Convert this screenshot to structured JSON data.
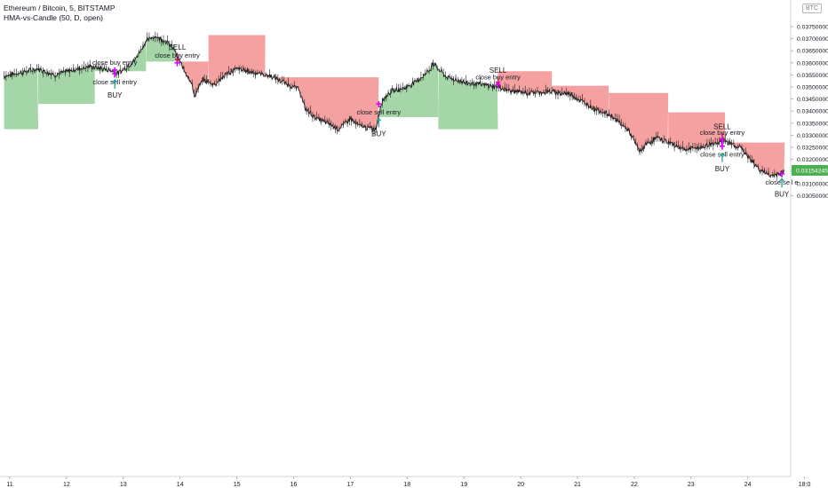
{
  "header": {
    "symbol": "Ethereum / Bitcoin, 5, BITSTAMP",
    "indicator": "HMA-vs-Candle (50, D, open)",
    "currency_badge": "BTC"
  },
  "colors": {
    "up_fill": "#a5d6a7",
    "down_fill": "#f6a1a1",
    "candle": "#1e1e1e",
    "marker": "#d500f9",
    "sell_arrow": "#c2185b",
    "buy_arrow": "#26a69a",
    "price_tag": "#4caf50",
    "axis_text": "#131722"
  },
  "chart_data": {
    "type": "line",
    "title": "Ethereum / Bitcoin, 5, BITSTAMP",
    "xlabel": "",
    "ylabel": "",
    "x_ticks": [
      "11",
      "12",
      "13",
      "14",
      "15",
      "16",
      "17",
      "18",
      "19",
      "20",
      "21",
      "22",
      "23",
      "24",
      "18:0"
    ],
    "y_ticks": [
      "0.03750000",
      "0.03700000",
      "0.03650000",
      "0.03600000",
      "0.03550000",
      "0.03500000",
      "0.03450000",
      "0.03400000",
      "0.03350000",
      "0.03300000",
      "0.03250000",
      "0.03200000",
      "0.03150000",
      "0.03100000",
      "0.03050000"
    ],
    "ylim": [
      0.03025,
      0.03775
    ],
    "last_price_label": "0.03154245",
    "last_price": 0.03154245,
    "price_series": [
      {
        "d": 10.9,
        "p": 0.03545
      },
      {
        "d": 11.2,
        "p": 0.0356
      },
      {
        "d": 11.5,
        "p": 0.03575
      },
      {
        "d": 11.8,
        "p": 0.0355
      },
      {
        "d": 12.1,
        "p": 0.0357
      },
      {
        "d": 12.4,
        "p": 0.03585
      },
      {
        "d": 12.8,
        "p": 0.03568
      },
      {
        "d": 12.9,
        "p": 0.03555
      },
      {
        "d": 13.2,
        "p": 0.0361
      },
      {
        "d": 13.4,
        "p": 0.0369
      },
      {
        "d": 13.55,
        "p": 0.0371
      },
      {
        "d": 13.75,
        "p": 0.0369
      },
      {
        "d": 13.9,
        "p": 0.03655
      },
      {
        "d": 14.0,
        "p": 0.036
      },
      {
        "d": 14.2,
        "p": 0.0352
      },
      {
        "d": 14.25,
        "p": 0.0346
      },
      {
        "d": 14.4,
        "p": 0.0353
      },
      {
        "d": 14.6,
        "p": 0.0351
      },
      {
        "d": 14.8,
        "p": 0.0355
      },
      {
        "d": 15.0,
        "p": 0.03575
      },
      {
        "d": 15.3,
        "p": 0.0356
      },
      {
        "d": 15.6,
        "p": 0.03545
      },
      {
        "d": 15.9,
        "p": 0.0351
      },
      {
        "d": 16.1,
        "p": 0.0349
      },
      {
        "d": 16.2,
        "p": 0.0341
      },
      {
        "d": 16.4,
        "p": 0.0337
      },
      {
        "d": 16.6,
        "p": 0.0335
      },
      {
        "d": 16.8,
        "p": 0.03325
      },
      {
        "d": 17.0,
        "p": 0.0337
      },
      {
        "d": 17.1,
        "p": 0.03345
      },
      {
        "d": 17.3,
        "p": 0.0333
      },
      {
        "d": 17.45,
        "p": 0.03325
      },
      {
        "d": 17.55,
        "p": 0.0344
      },
      {
        "d": 17.7,
        "p": 0.0348
      },
      {
        "d": 18.0,
        "p": 0.035
      },
      {
        "d": 18.2,
        "p": 0.0353
      },
      {
        "d": 18.4,
        "p": 0.0357
      },
      {
        "d": 18.45,
        "p": 0.036
      },
      {
        "d": 18.55,
        "p": 0.03575
      },
      {
        "d": 18.7,
        "p": 0.0354
      },
      {
        "d": 19.0,
        "p": 0.0352
      },
      {
        "d": 19.3,
        "p": 0.0351
      },
      {
        "d": 19.6,
        "p": 0.035
      },
      {
        "d": 19.8,
        "p": 0.03485
      },
      {
        "d": 20.1,
        "p": 0.03475
      },
      {
        "d": 20.5,
        "p": 0.0348
      },
      {
        "d": 20.9,
        "p": 0.0347
      },
      {
        "d": 21.0,
        "p": 0.0345
      },
      {
        "d": 21.3,
        "p": 0.0341
      },
      {
        "d": 21.6,
        "p": 0.0338
      },
      {
        "d": 21.9,
        "p": 0.0332
      },
      {
        "d": 22.1,
        "p": 0.0323
      },
      {
        "d": 22.2,
        "p": 0.0326
      },
      {
        "d": 22.4,
        "p": 0.0329
      },
      {
        "d": 22.6,
        "p": 0.0327
      },
      {
        "d": 22.9,
        "p": 0.0324
      },
      {
        "d": 23.2,
        "p": 0.0325
      },
      {
        "d": 23.45,
        "p": 0.0327
      },
      {
        "d": 23.6,
        "p": 0.03275
      },
      {
        "d": 23.9,
        "p": 0.03245
      },
      {
        "d": 24.0,
        "p": 0.0321
      },
      {
        "d": 24.2,
        "p": 0.0316
      },
      {
        "d": 24.4,
        "p": 0.0313
      },
      {
        "d": 24.6,
        "p": 0.03145
      },
      {
        "d": 24.65,
        "p": 0.03154
      }
    ],
    "hma_steps": [
      {
        "from": 10.9,
        "to": 11.5,
        "level": 0.03325,
        "trend": "up"
      },
      {
        "from": 11.5,
        "to": 12.5,
        "level": 0.0343,
        "trend": "up"
      },
      {
        "from": 12.5,
        "to": 13.4,
        "level": 0.03565,
        "trend": "up"
      },
      {
        "from": 13.4,
        "to": 13.95,
        "level": 0.03605,
        "trend": "up"
      },
      {
        "from": 13.95,
        "to": 14.5,
        "level": 0.03605,
        "trend": "down"
      },
      {
        "from": 14.5,
        "to": 15.5,
        "level": 0.03715,
        "trend": "down"
      },
      {
        "from": 15.5,
        "to": 17.5,
        "level": 0.0354,
        "trend": "down"
      },
      {
        "from": 17.5,
        "to": 18.55,
        "level": 0.03375,
        "trend": "up"
      },
      {
        "from": 18.55,
        "to": 19.6,
        "level": 0.03325,
        "trend": "up"
      },
      {
        "from": 19.6,
        "to": 20.55,
        "level": 0.03565,
        "trend": "down"
      },
      {
        "from": 20.55,
        "to": 21.55,
        "level": 0.03505,
        "trend": "down"
      },
      {
        "from": 21.55,
        "to": 22.6,
        "level": 0.03475,
        "trend": "down"
      },
      {
        "from": 22.6,
        "to": 23.6,
        "level": 0.03395,
        "trend": "down"
      },
      {
        "from": 23.6,
        "to": 24.65,
        "level": 0.0327,
        "trend": "down"
      }
    ],
    "signals": [
      {
        "d": 12.85,
        "p": 0.0357,
        "kind": "close-buy",
        "label": "close buy entry",
        "side": "above"
      },
      {
        "d": 12.85,
        "p": 0.03555,
        "kind": "close-sell",
        "label": "close sell entry",
        "side": "below"
      },
      {
        "d": 12.85,
        "p": 0.0353,
        "kind": "buy",
        "label": "BUY",
        "side": "below"
      },
      {
        "d": 13.95,
        "p": 0.0364,
        "kind": "sell",
        "label": "SELL",
        "side": "above"
      },
      {
        "d": 13.95,
        "p": 0.036,
        "kind": "close-buy",
        "label": "close buy entry",
        "side": "above"
      },
      {
        "d": 17.5,
        "p": 0.0343,
        "kind": "close-sell",
        "label": "close sell entry",
        "side": "below"
      },
      {
        "d": 17.5,
        "p": 0.0337,
        "kind": "buy",
        "label": "BUY",
        "side": "below"
      },
      {
        "d": 19.6,
        "p": 0.03545,
        "kind": "sell",
        "label": "SELL",
        "side": "above"
      },
      {
        "d": 19.6,
        "p": 0.0351,
        "kind": "close-buy",
        "label": "close buy entry",
        "side": "above"
      },
      {
        "d": 23.55,
        "p": 0.0331,
        "kind": "sell",
        "label": "SELL",
        "side": "above"
      },
      {
        "d": 23.55,
        "p": 0.0328,
        "kind": "close-buy",
        "label": "close buy entry",
        "side": "above"
      },
      {
        "d": 23.55,
        "p": 0.03255,
        "kind": "close-sell",
        "label": "close sell entry",
        "side": "below"
      },
      {
        "d": 23.55,
        "p": 0.03225,
        "kind": "buy",
        "label": "BUY",
        "side": "below"
      },
      {
        "d": 24.6,
        "p": 0.0314,
        "kind": "close-sell",
        "label": "close sell e",
        "side": "below"
      },
      {
        "d": 24.6,
        "p": 0.0312,
        "kind": "buy",
        "label": "BUY",
        "side": "below"
      }
    ]
  }
}
